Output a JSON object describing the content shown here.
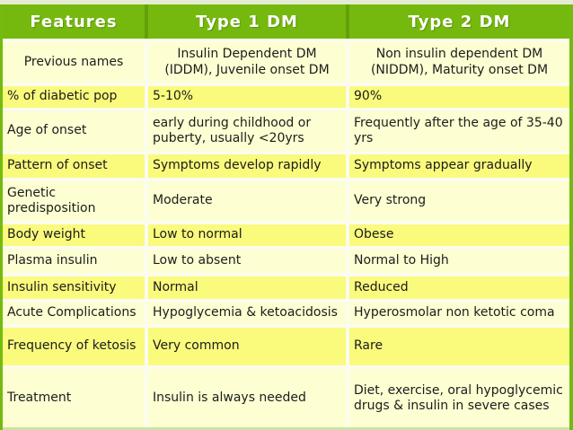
{
  "table": {
    "headers": {
      "features": "Features",
      "type1": "Type 1 DM",
      "type2": "Type 2 DM"
    },
    "rows": [
      {
        "feature": "Previous names",
        "type1": "Insulin Dependent DM (IDDM), Juvenile onset DM",
        "type2": "Non insulin dependent DM (NIDDM), Maturity onset DM"
      },
      {
        "feature": "% of diabetic pop",
        "type1": "5-10%",
        "type2": "90%"
      },
      {
        "feature": "Age of onset",
        "type1": "early during childhood or puberty, usually <20yrs",
        "type2": "Frequently after the age of 35-40 yrs"
      },
      {
        "feature": "Pattern of onset",
        "type1": "Symptoms develop rapidly",
        "type2": "Symptoms appear gradually"
      },
      {
        "feature": "Genetic predisposition",
        "type1": "Moderate",
        "type2": "Very strong"
      },
      {
        "feature": "Body weight",
        "type1": "Low to normal",
        "type2": "Obese"
      },
      {
        "feature": "Plasma insulin",
        "type1": "Low to absent",
        "type2": "Normal to High"
      },
      {
        "feature": "Insulin sensitivity",
        "type1": "Normal",
        "type2": "Reduced"
      },
      {
        "feature": "Acute Complications",
        "type1": "Hypoglycemia & ketoacidosis",
        "type2": "Hyperosmolar non ketotic coma"
      },
      {
        "feature": "Frequency of ketosis",
        "type1": "Very common",
        "type2": "Rare"
      },
      {
        "feature": "Treatment",
        "type1": "Insulin is always needed",
        "type2": "Diet, exercise, oral hypoglycemic drugs & insulin in severe cases"
      }
    ],
    "colors": {
      "header_green": "#76b90e",
      "header_separator_green": "#63a009",
      "row_pale_yellow": "#fdffd2",
      "row_bright_yellow": "#fafa7d",
      "gap_white": "#fbfcee",
      "edge_green": "#74ba10",
      "top_strip": "#e4ecd4",
      "header_text": "#ffffff",
      "body_text": "#1c1c1c"
    }
  }
}
